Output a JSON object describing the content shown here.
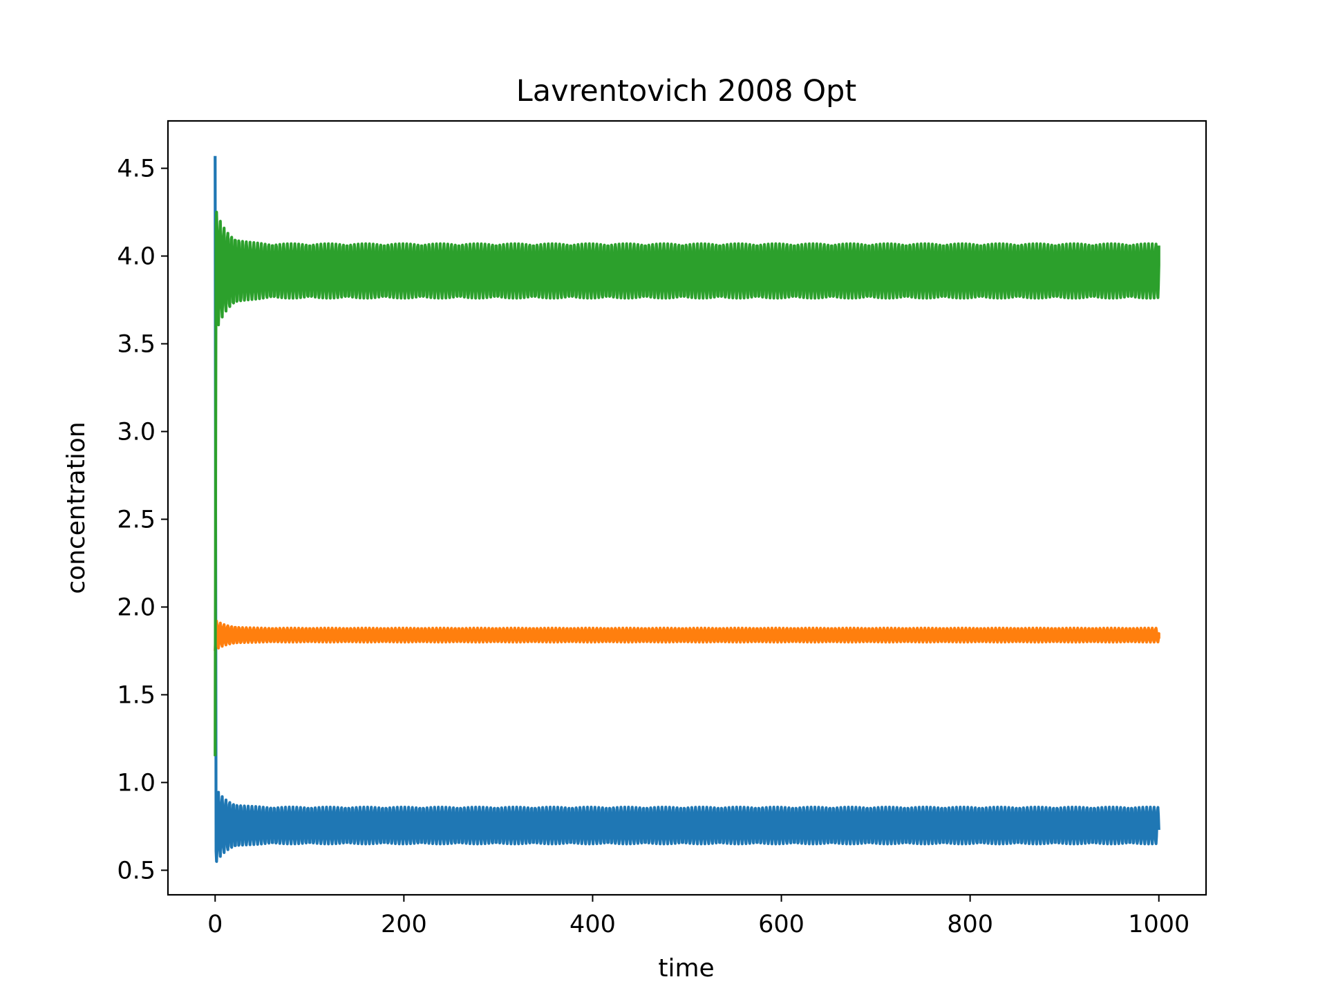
{
  "chart_data": {
    "type": "line",
    "title": "Lavrentovich 2008 Opt",
    "xlabel": "time",
    "ylabel": "concentration",
    "xlim": [
      -50,
      1050
    ],
    "ylim": [
      0.36,
      4.77
    ],
    "x_ticks": [
      0,
      200,
      400,
      600,
      800,
      1000
    ],
    "x_tick_labels": [
      "0",
      "200",
      "400",
      "600",
      "800",
      "1000"
    ],
    "y_ticks": [
      0.5,
      1.0,
      1.5,
      2.0,
      2.5,
      3.0,
      3.5,
      4.0,
      4.5
    ],
    "y_tick_labels": [
      "0.5",
      "1.0",
      "1.5",
      "2.0",
      "2.5",
      "3.0",
      "3.5",
      "4.0",
      "4.5"
    ],
    "grid": false,
    "legend": false,
    "series": [
      {
        "color": "#1f77b4",
        "initial_value": 4.57,
        "first_min": 0.55,
        "envelope_upper": 0.86,
        "envelope_lower": 0.65,
        "end_value": 0.73,
        "time_end": 1000
      },
      {
        "color": "#ff7f0e",
        "initial_value": 1.75,
        "first_max": 1.92,
        "envelope_upper": 1.88,
        "envelope_lower": 1.8,
        "end_value": 1.82,
        "time_end": 1000
      },
      {
        "color": "#2ca02c",
        "initial_value": 1.15,
        "first_max": 4.25,
        "envelope_upper": 4.07,
        "envelope_lower": 3.76,
        "end_value": 4.06,
        "time_end": 1000
      }
    ]
  }
}
